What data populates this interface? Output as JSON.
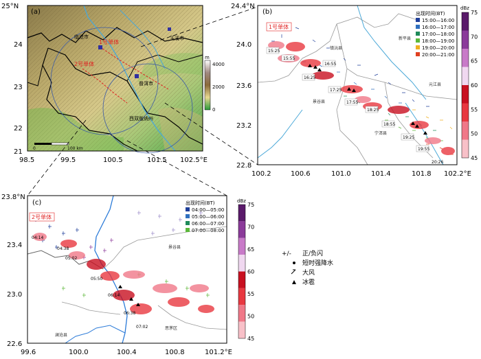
{
  "panel_a": {
    "label": "(a)",
    "lat_ticks": [
      "25°N",
      "24",
      "23",
      "22",
      "21"
    ],
    "lon_ticks": [
      "98.5",
      "99.5",
      "100.5",
      "101.5",
      "102.5°E"
    ],
    "places": {
      "lincang": "临沧市",
      "yuxi": "玉溪市",
      "puer": "普洱市",
      "xishuangbanna": "西双版纳州"
    },
    "cells": {
      "cell1": "1号单体",
      "cell2": "2号单体"
    },
    "scale_label": "100 km",
    "scale_zero": "0",
    "colorbar": {
      "unit": "m",
      "ticks": [
        "4000",
        "2000",
        "0"
      ]
    }
  },
  "panel_b": {
    "label": "(b)",
    "lat_ticks": [
      "24.4°N",
      "24.0",
      "23.6",
      "23.2",
      "22.8"
    ],
    "lon_ticks": [
      "100.2",
      "100.6",
      "101.0",
      "101.4",
      "101.8",
      "102.2°E"
    ],
    "cell_label": "1号单体",
    "legend_title": "出现时间(BT)",
    "legend": [
      {
        "label": "15:00—16:00",
        "color": "#1f3f9a"
      },
      {
        "label": "16:00—17:00",
        "color": "#2f6fbf"
      },
      {
        "label": "17:00—18:00",
        "color": "#1f8a5a"
      },
      {
        "label": "18:00—19:00",
        "color": "#5cb83a"
      },
      {
        "label": "19:00—20:00",
        "color": "#f0b020"
      },
      {
        "label": "20:00—21:00",
        "color": "#e04020"
      }
    ],
    "times": [
      "15:25",
      "15:55",
      "16:25",
      "16:55",
      "17:25",
      "17:55",
      "18:25",
      "18:55",
      "19:25",
      "19:55",
      "20:26"
    ],
    "counties": [
      "镇沅县",
      "新平县",
      "元江县",
      "景谷县",
      "宁洱县"
    ]
  },
  "panel_c": {
    "label": "(c)",
    "lat_ticks": [
      "23.8°N",
      "23.4",
      "23.0",
      "22.6"
    ],
    "lon_ticks": [
      "99.6",
      "100.0",
      "100.4",
      "100.8",
      "101.2°E"
    ],
    "cell_label": "2号单体",
    "legend_title": "出现时间(BT)",
    "legend": [
      {
        "label": "04:00—05:00",
        "color": "#1f3f9a"
      },
      {
        "label": "05:00—06:00",
        "color": "#2f6fbf"
      },
      {
        "label": "06:00—07:00",
        "color": "#1f8a5a"
      },
      {
        "label": "07:00—08:00",
        "color": "#5cb83a"
      }
    ],
    "times": [
      "04:14",
      "04:38",
      "05:02",
      "05:50",
      "06:14",
      "06:38",
      "07:02"
    ],
    "counties": [
      "景谷县",
      "澜沧县",
      "思茅区"
    ]
  },
  "dbz_scale_top": {
    "unit": "dBz",
    "ticks": [
      "75",
      "70",
      "65",
      "60",
      "55",
      "50",
      "45"
    ]
  },
  "dbz_scale_bottom": {
    "unit": "dBz",
    "ticks": [
      "75",
      "70",
      "65",
      "60",
      "55",
      "50",
      "45"
    ]
  },
  "dbz_colors": [
    "#5a1a6a",
    "#8b3a9a",
    "#c87ac8",
    "#f0d8f0",
    "#c81020",
    "#e83840",
    "#f07888",
    "#f8c0c8"
  ],
  "symbol_legend": {
    "lightning": "正/负闪",
    "lightning_symbol": "+/-",
    "rain": "短时强降水",
    "wind": "大风",
    "hail": "冰雹"
  }
}
